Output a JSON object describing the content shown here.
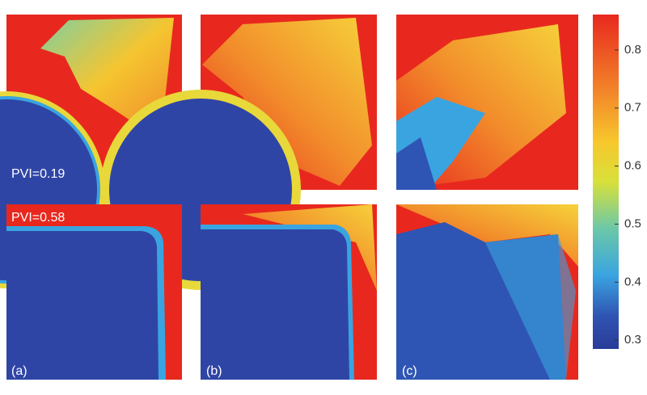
{
  "rows": [
    {
      "annotation": "PVI=0.19"
    },
    {
      "annotation": "PVI=0.58"
    }
  ],
  "column_labels": [
    "(a)",
    "(b)",
    "(c)"
  ],
  "colorbar": {
    "lim": [
      0.285,
      0.861
    ],
    "ticks": [
      0.3,
      0.4,
      0.5,
      0.6,
      0.7,
      0.8
    ]
  }
}
